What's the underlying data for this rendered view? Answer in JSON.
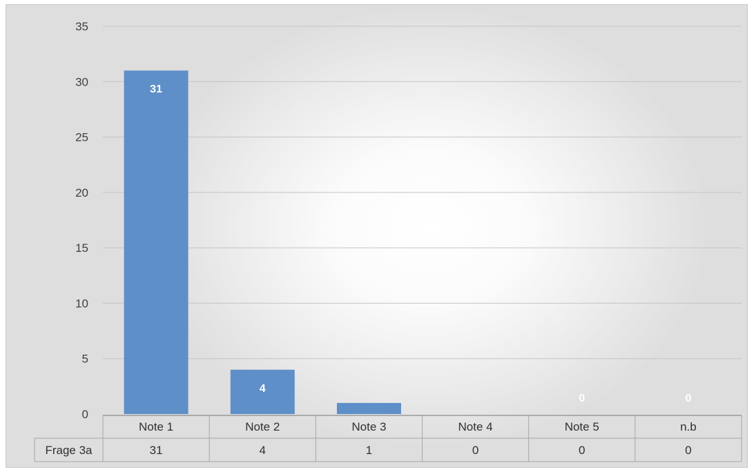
{
  "chart_data": {
    "type": "bar",
    "title": "",
    "xlabel": "",
    "ylabel": "",
    "categories": [
      "Note 1",
      "Note 2",
      "Note 3",
      "Note 4",
      "Note 5",
      "n.b"
    ],
    "series": [
      {
        "name": "Frage 3a",
        "values": [
          31,
          4,
          1,
          0,
          0,
          0
        ],
        "color": "#5f8fc8"
      }
    ],
    "ylim": [
      0,
      35
    ],
    "yticks": [
      "0",
      "5",
      "10",
      "15",
      "20",
      "25",
      "30",
      "35"
    ],
    "data_labels": [
      "31",
      "4",
      "",
      "",
      "0",
      "0"
    ],
    "grid": true,
    "legend": "none",
    "data_table": true,
    "table_values": [
      "31",
      "4",
      "1",
      "0",
      "0",
      "0"
    ]
  }
}
